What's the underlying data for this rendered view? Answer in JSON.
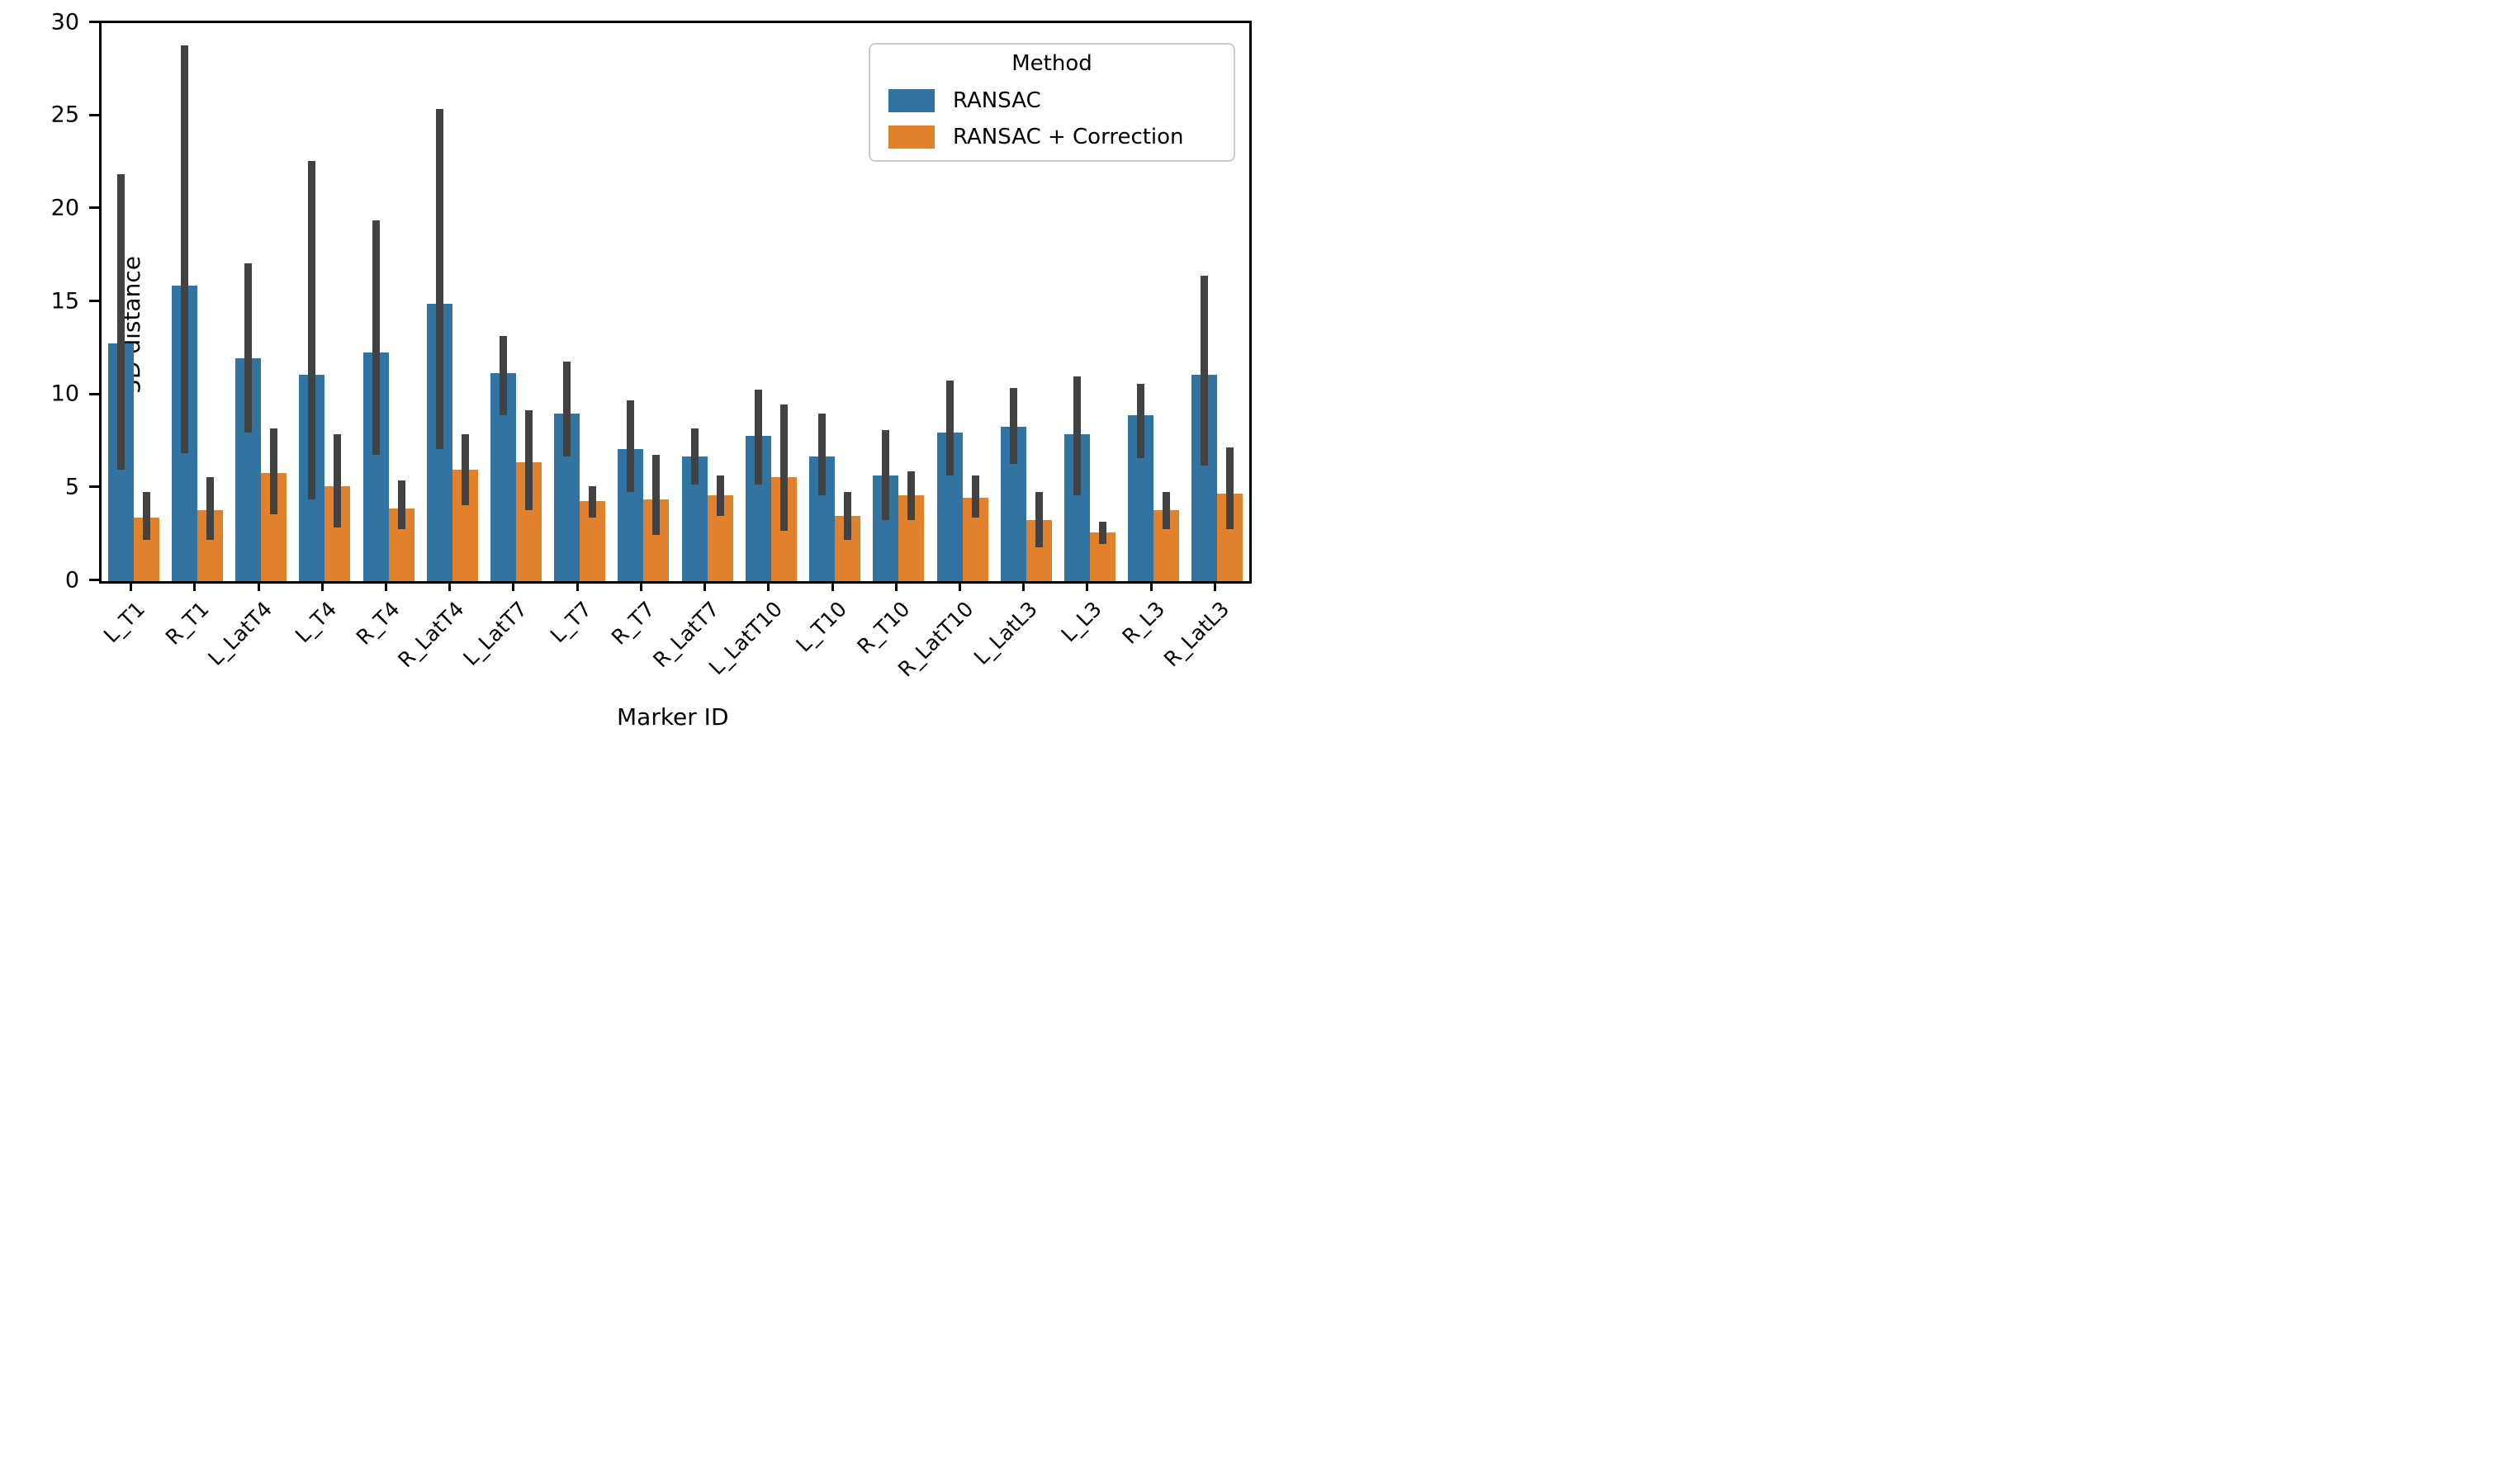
{
  "chart_data": {
    "type": "bar",
    "title": "",
    "xlabel": "Marker ID",
    "ylabel": "3D distance",
    "ylim": [
      0,
      30
    ],
    "yticks": [
      0,
      5,
      10,
      15,
      20,
      25,
      30
    ],
    "grid": false,
    "legend": {
      "title": "Method",
      "position": "upper right"
    },
    "categories": [
      "L_T1",
      "R_T1",
      "L_LatT4",
      "L_T4",
      "R_T4",
      "R_LatT4",
      "L_LatT7",
      "L_T7",
      "R_T7",
      "R_LatT7",
      "L_LatT10",
      "L_T10",
      "R_T10",
      "R_LatT10",
      "L_LatL3",
      "L_L3",
      "R_L3",
      "R_LatL3"
    ],
    "series": [
      {
        "name": "RANSAC",
        "color": "#3274a1",
        "values": [
          12.8,
          15.9,
          12.0,
          11.1,
          12.3,
          14.9,
          11.2,
          9.0,
          7.1,
          6.7,
          7.8,
          6.7,
          5.7,
          8.0,
          8.3,
          7.9,
          8.9,
          11.1
        ],
        "err_low": [
          6.0,
          6.9,
          8.0,
          4.4,
          6.8,
          7.1,
          8.9,
          6.7,
          4.8,
          5.2,
          5.2,
          4.6,
          3.3,
          5.7,
          6.3,
          4.6,
          6.6,
          6.2
        ],
        "err_high": [
          21.9,
          28.8,
          17.1,
          22.6,
          19.4,
          25.4,
          13.2,
          11.8,
          9.7,
          8.2,
          10.3,
          9.0,
          8.1,
          10.8,
          10.4,
          11.0,
          10.6,
          16.4
        ]
      },
      {
        "name": "RANSAC + Correction",
        "color": "#e1812c",
        "values": [
          3.4,
          3.8,
          5.8,
          5.1,
          3.9,
          6.0,
          6.4,
          4.3,
          4.4,
          4.6,
          5.6,
          3.5,
          4.6,
          4.5,
          3.3,
          2.6,
          3.8,
          4.7
        ],
        "err_low": [
          2.2,
          2.2,
          3.6,
          2.9,
          2.8,
          4.1,
          3.8,
          3.4,
          2.5,
          3.5,
          2.7,
          2.2,
          3.3,
          3.4,
          1.8,
          2.0,
          2.8,
          2.8
        ],
        "err_high": [
          4.8,
          5.6,
          8.2,
          7.9,
          5.4,
          7.9,
          9.2,
          5.1,
          6.8,
          5.7,
          9.5,
          4.8,
          5.9,
          5.7,
          4.8,
          3.2,
          4.8,
          7.2
        ]
      }
    ],
    "error_bar_color": "#424242"
  }
}
